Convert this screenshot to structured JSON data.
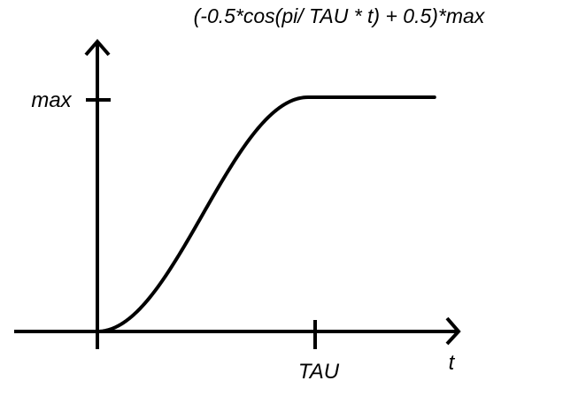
{
  "chart_data": {
    "type": "line",
    "title": "(-0.5*cos(pi/ TAU * t) + 0.5)*max",
    "xlabel": "t",
    "ylabel": "",
    "x_ticks": [
      "TAU"
    ],
    "y_ticks": [
      "max"
    ],
    "grid": false,
    "series": [
      {
        "x": [
          0,
          0.125,
          0.25,
          0.375,
          0.5,
          0.625,
          0.75,
          0.875,
          1,
          1.2,
          1.4,
          1.6
        ],
        "y": [
          0,
          0.038,
          0.146,
          0.309,
          0.5,
          0.691,
          0.854,
          0.962,
          1,
          1,
          1,
          1
        ]
      }
    ],
    "notes": "x in units of TAU, y in units of max; curve rises as half-cosine then stays flat"
  }
}
